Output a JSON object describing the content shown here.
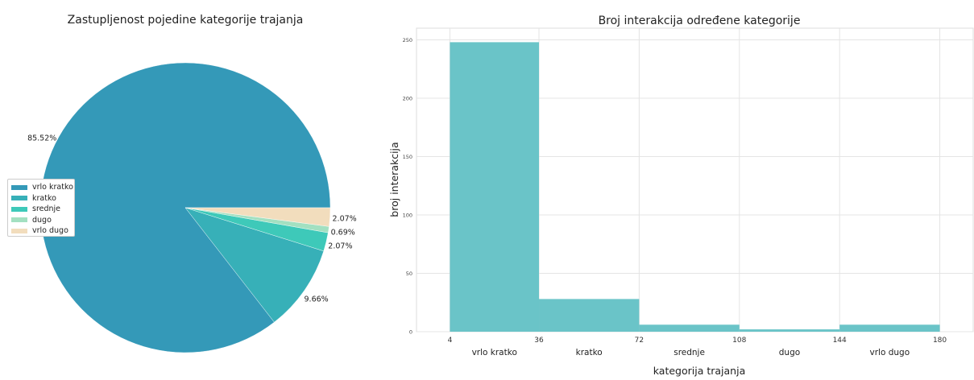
{
  "chart_data": [
    {
      "type": "pie",
      "title": "Zastupljenost pojedine kategorije trajanja",
      "labels": [
        "vrlo kratko",
        "kratko",
        "srednje",
        "dugo",
        "vrlo dugo"
      ],
      "values": [
        85.52,
        9.66,
        2.07,
        0.69,
        2.07
      ],
      "pct_labels": [
        "85.52%",
        "9.66%",
        "2.07%",
        "0.69%",
        "2.07%"
      ],
      "colors": [
        "#3499b8",
        "#37b0b8",
        "#3ec9b9",
        "#a3e0c1",
        "#f2ddbd"
      ],
      "legend": "center-left"
    },
    {
      "type": "bar",
      "title": "Broj interakcija određene kategorije",
      "xlabel": "kategorija trajanja",
      "ylabel": "broj interakcija",
      "bin_edges": [
        4,
        36,
        72,
        108,
        144,
        180
      ],
      "categories": [
        "vrlo kratko",
        "kratko",
        "srednje",
        "dugo",
        "vrlo dugo"
      ],
      "values": [
        248,
        28,
        6,
        2,
        6
      ],
      "ylim": [
        0,
        260
      ],
      "yticks": [
        0,
        50,
        100,
        150,
        200,
        250
      ],
      "grid": true,
      "color": "#6ac4c8"
    }
  ]
}
